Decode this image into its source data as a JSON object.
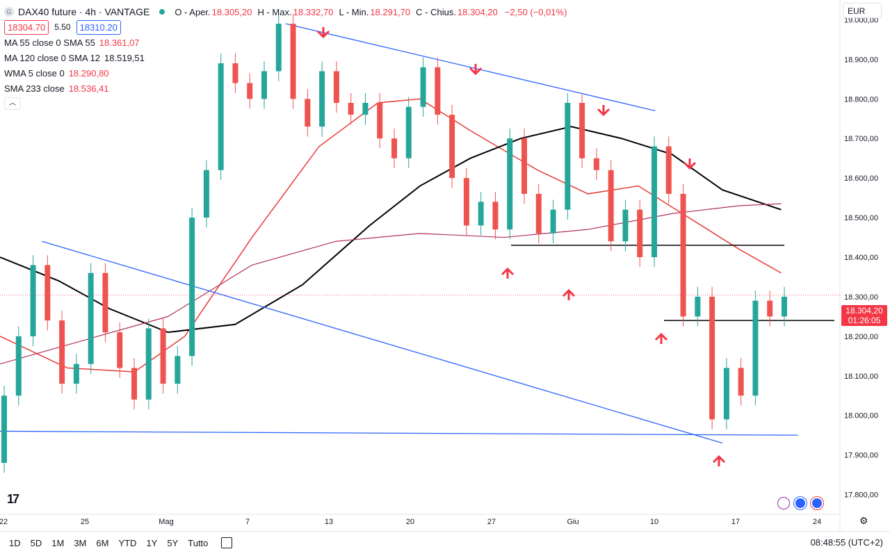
{
  "header": {
    "symbol_icon": "G",
    "title": "DAX40 future · 4h · VANTAGE",
    "ohlc": [
      {
        "label": "O - Aper.",
        "value": "18.305,20"
      },
      {
        "label": "H - Max.",
        "value": "18.332,70"
      },
      {
        "label": "L - Min.",
        "value": "18.291,70"
      },
      {
        "label": "C - Chius.",
        "value": "18.304,20"
      },
      {
        "label": "",
        "value": "−2,50 (−0,01%)"
      }
    ],
    "bid": "18304.70",
    "spread": "5.50",
    "ask": "18310.20"
  },
  "indicators": [
    {
      "name": "MA 55 close 0 SMA 55",
      "value": "18.361,07",
      "color": "#f23645"
    },
    {
      "name": "MA 120 close 0 SMA 12",
      "value": "18.519,51",
      "color": "#131722"
    },
    {
      "name": "WMA 5 close 0",
      "value": "18.290,80",
      "color": "#f23645"
    },
    {
      "name": "SMA 233 close",
      "value": "18.536,41",
      "color": "#f23645"
    }
  ],
  "collapse_icon": "chevron-up-icon",
  "currency": "EUR",
  "last_price": {
    "value": "18.304,20",
    "countdown": "01:26:05"
  },
  "bottom": {
    "ranges": [
      "1D",
      "5D",
      "1M",
      "3M",
      "6M",
      "YTD",
      "1Y",
      "5Y",
      "Tutto"
    ],
    "time": "08:48:55 (UTC+2)"
  },
  "colors": {
    "up": "#26a69a",
    "down": "#ef5350",
    "trend": "#2962ff",
    "arrow": "#f23645",
    "ma": "#e53935"
  },
  "chart_data": {
    "type": "candlestick",
    "y_ticks": [
      17800,
      17900,
      18000,
      18100,
      18200,
      18300,
      18400,
      18500,
      18600,
      18700,
      18800,
      18900,
      19000
    ],
    "y_tick_labels": [
      "17.800,00",
      "17.900,00",
      "18.000,00",
      "18.100,00",
      "18.200,00",
      "18.300,00",
      "18.400,00",
      "18.500,00",
      "18.600,00",
      "18.700,00",
      "18.800,00",
      "18.900,00",
      "19.000,00"
    ],
    "x_tick_labels": [
      "22",
      "25",
      "Mag",
      "7",
      "13",
      "20",
      "27",
      "Giu",
      "10",
      "17",
      "24"
    ],
    "ylim": [
      17750,
      19050
    ],
    "ohlc_points": [
      [
        17880,
        18050
      ],
      [
        18050,
        18200
      ],
      [
        18200,
        18380
      ],
      [
        18380,
        18240
      ],
      [
        18240,
        18080
      ],
      [
        18080,
        18130
      ],
      [
        18130,
        18360
      ],
      [
        18360,
        18210
      ],
      [
        18210,
        18120
      ],
      [
        18120,
        18040
      ],
      [
        18040,
        18220
      ],
      [
        18220,
        18080
      ],
      [
        18080,
        18150
      ],
      [
        18150,
        18500
      ],
      [
        18500,
        18620
      ],
      [
        18620,
        18890
      ],
      [
        18890,
        18840
      ],
      [
        18840,
        18800
      ],
      [
        18800,
        18870
      ],
      [
        18870,
        18990
      ],
      [
        18990,
        18800
      ],
      [
        18800,
        18730
      ],
      [
        18730,
        18870
      ],
      [
        18870,
        18790
      ],
      [
        18790,
        18760
      ],
      [
        18760,
        18790
      ],
      [
        18790,
        18700
      ],
      [
        18700,
        18650
      ],
      [
        18650,
        18780
      ],
      [
        18780,
        18880
      ],
      [
        18880,
        18760
      ],
      [
        18760,
        18600
      ],
      [
        18600,
        18480
      ],
      [
        18480,
        18540
      ],
      [
        18540,
        18470
      ],
      [
        18470,
        18700
      ],
      [
        18700,
        18560
      ],
      [
        18560,
        18460
      ],
      [
        18460,
        18520
      ],
      [
        18520,
        18790
      ],
      [
        18790,
        18650
      ],
      [
        18650,
        18620
      ],
      [
        18620,
        18440
      ],
      [
        18440,
        18520
      ],
      [
        18520,
        18400
      ],
      [
        18400,
        18680
      ],
      [
        18680,
        18560
      ],
      [
        18560,
        18250
      ],
      [
        18250,
        18300
      ],
      [
        18300,
        17990
      ],
      [
        17990,
        18120
      ],
      [
        18120,
        18050
      ],
      [
        18050,
        18290
      ],
      [
        18290,
        18250
      ],
      [
        18250,
        18300
      ]
    ],
    "moving_averages": {
      "sma55": [
        [
          0,
          18200
        ],
        [
          0.08,
          18120
        ],
        [
          0.16,
          18110
        ],
        [
          0.22,
          18200
        ],
        [
          0.3,
          18450
        ],
        [
          0.38,
          18680
        ],
        [
          0.45,
          18790
        ],
        [
          0.5,
          18800
        ],
        [
          0.56,
          18720
        ],
        [
          0.64,
          18620
        ],
        [
          0.7,
          18560
        ],
        [
          0.76,
          18580
        ],
        [
          0.82,
          18500
        ],
        [
          0.88,
          18420
        ],
        [
          0.93,
          18360
        ]
      ],
      "ma120": [
        [
          0,
          18400
        ],
        [
          0.07,
          18340
        ],
        [
          0.13,
          18270
        ],
        [
          0.2,
          18210
        ],
        [
          0.28,
          18230
        ],
        [
          0.36,
          18330
        ],
        [
          0.44,
          18480
        ],
        [
          0.5,
          18580
        ],
        [
          0.56,
          18650
        ],
        [
          0.62,
          18700
        ],
        [
          0.68,
          18730
        ],
        [
          0.74,
          18700
        ],
        [
          0.8,
          18660
        ],
        [
          0.86,
          18570
        ],
        [
          0.93,
          18520
        ]
      ],
      "sma233": [
        [
          0,
          18130
        ],
        [
          0.1,
          18190
        ],
        [
          0.2,
          18250
        ],
        [
          0.3,
          18380
        ],
        [
          0.4,
          18440
        ],
        [
          0.5,
          18460
        ],
        [
          0.6,
          18450
        ],
        [
          0.7,
          18470
        ],
        [
          0.8,
          18510
        ],
        [
          0.88,
          18530
        ],
        [
          0.93,
          18535
        ]
      ]
    },
    "support_levels": [
      18430,
      18240
    ],
    "trendlines": [
      {
        "from": [
          18990,
          0.34
        ],
        "to": [
          18770,
          0.78
        ]
      },
      {
        "from": [
          18440,
          0.05
        ],
        "to": [
          17930,
          0.86
        ]
      },
      {
        "from": [
          17960,
          0
        ],
        "to": [
          17950,
          0.95
        ]
      }
    ]
  }
}
